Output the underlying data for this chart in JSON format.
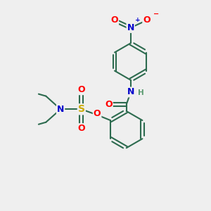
{
  "background_color": "#efefef",
  "bond_color": "#2d6b4f",
  "bond_width": 1.5,
  "atom_colors": {
    "O": "#ff0000",
    "N": "#0000cc",
    "S": "#ccaa00",
    "C": "#2d6b4f",
    "H": "#5a9a70"
  },
  "figsize": [
    3.0,
    3.0
  ],
  "dpi": 100
}
